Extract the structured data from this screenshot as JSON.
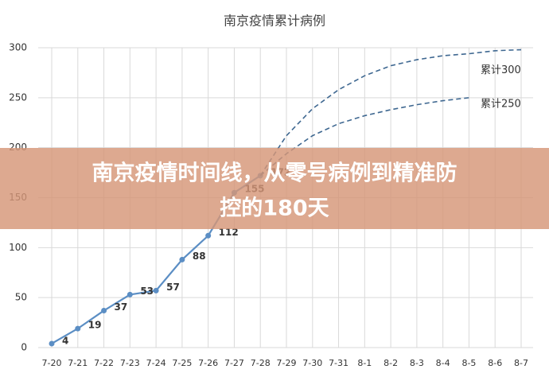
{
  "chart_data": {
    "type": "line",
    "title": "南京疫情累计病例",
    "categories": [
      "7-20",
      "7-21",
      "7-22",
      "7-23",
      "7-24",
      "7-25",
      "7-26",
      "7-27",
      "7-28",
      "7-29",
      "7-30",
      "7-31",
      "8-1",
      "8-2",
      "8-3",
      "8-4",
      "8-5",
      "8-6",
      "8-7"
    ],
    "series": [
      {
        "color": "#5b8ec4",
        "values": [
          4,
          19,
          37,
          53,
          57,
          88,
          112,
          155,
          172,
          null,
          null,
          null,
          null,
          null,
          null,
          null,
          null,
          null,
          null
        ],
        "data_labels": true
      },
      {
        "name": "累计300",
        "color": "#3f6891",
        "dashed": true,
        "values": [
          null,
          null,
          null,
          null,
          null,
          null,
          null,
          null,
          172,
          212,
          239,
          258,
          272,
          282,
          288,
          292,
          294,
          297,
          298
        ]
      },
      {
        "name": "累计250",
        "color": "#3f6891",
        "dashed": true,
        "values": [
          null,
          null,
          null,
          null,
          null,
          null,
          null,
          null,
          172,
          194,
          212,
          224,
          232,
          238,
          243,
          247,
          250,
          null,
          null
        ]
      }
    ],
    "ylim": [
      0,
      300
    ],
    "yticks": [
      0,
      50,
      100,
      150,
      200,
      250,
      300
    ],
    "grid": true
  },
  "banner": {
    "lines": [
      "南京疫情时间线，从零号病例到精准防",
      "控的180天"
    ]
  }
}
